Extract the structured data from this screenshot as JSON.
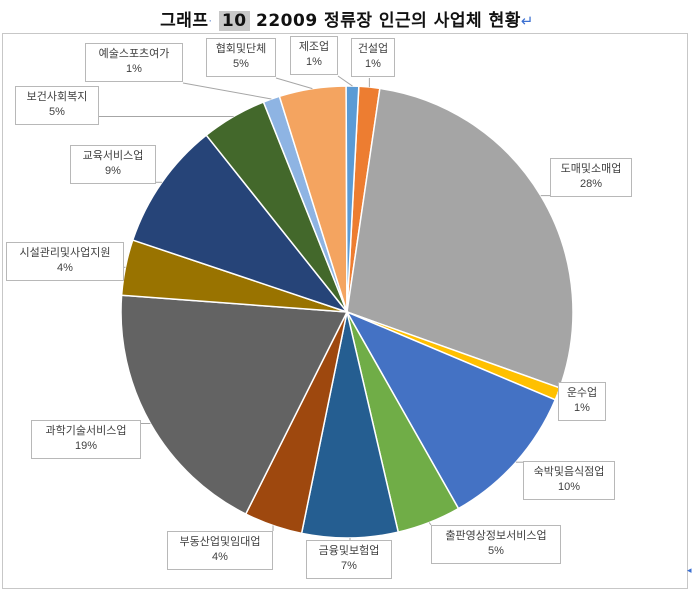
{
  "document": {
    "title_prefix": "그래프",
    "title_number": "10",
    "title_rest": "22009 정류장 인근의 사업체 현황"
  },
  "chart_data": {
    "type": "pie",
    "start_angle_deg": 3,
    "label_format": "category + percent",
    "slices": [
      {
        "label": "건설업",
        "percent": "1%",
        "value": 1.5,
        "color": "#ed7d31"
      },
      {
        "label": "도매및소매업",
        "percent": "28%",
        "value": 28.3,
        "color": "#a5a5a5"
      },
      {
        "label": "운수업",
        "percent": "1%",
        "value": 0.9,
        "color": "#ffc000"
      },
      {
        "label": "숙박및음식점업",
        "percent": "10%",
        "value": 10.5,
        "color": "#4472c4"
      },
      {
        "label": "출판영상정보서비스업",
        "percent": "5%",
        "value": 4.6,
        "color": "#70ad47"
      },
      {
        "label": "금융및보험업",
        "percent": "7%",
        "value": 6.9,
        "color": "#255e91"
      },
      {
        "label": "부동산업및임대업",
        "percent": "4%",
        "value": 4.2,
        "color": "#9e480e"
      },
      {
        "label": "과학기술서비스업",
        "percent": "19%",
        "value": 18.9,
        "color": "#636363"
      },
      {
        "label": "시설관리및사업지원",
        "percent": "4%",
        "value": 4.0,
        "color": "#997300"
      },
      {
        "label": "교육서비스업",
        "percent": "9%",
        "value": 9.2,
        "color": "#264478"
      },
      {
        "label": "보건사회복지",
        "percent": "5%",
        "value": 4.7,
        "color": "#43682b"
      },
      {
        "label": "예술스포츠여가",
        "percent": "1%",
        "value": 1.2,
        "color": "#8eb4e3"
      },
      {
        "label": "협회및단체",
        "percent": "5%",
        "value": 4.8,
        "color": "#f4a460"
      },
      {
        "label": "제조업",
        "percent": "1%",
        "value": 0.9,
        "color": "#5b9bd5"
      }
    ]
  }
}
